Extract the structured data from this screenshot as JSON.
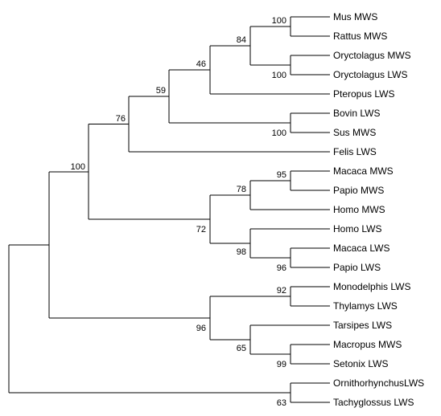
{
  "leaves": [
    "Mus MWS",
    "Rattus MWS",
    "Oryctolagus MWS",
    "Oryctolagus LWS",
    "Pteropus LWS",
    "Bovin LWS",
    "Sus MWS",
    "Felis LWS",
    "Macaca MWS",
    "Papio MWS",
    "Homo MWS",
    "Homo LWS",
    "Macaca LWS",
    "Papio LWS",
    "Monodelphis LWS",
    "Thylamys LWS",
    "Tarsipes LWS",
    "Macropus MWS",
    "Setonix LWS",
    "OrnithorhynchusLWS",
    "Tachyglossus LWS"
  ],
  "support_values": {
    "mus_rattus": "100",
    "oryctolagus_pair": "100",
    "glires": "84",
    "glires_pteropus": "46",
    "bovin_sus": "100",
    "laurasia_group": "59",
    "placental_nonprimate": "76",
    "macaca_papio_mws": "95",
    "primate_mws": "78",
    "macaca_papio_lws": "96",
    "primate_lws": "98",
    "primates": "72",
    "placentals": "100",
    "monodelphis_thylamys": "92",
    "macropus_setonix": "99",
    "diprotodont": "65",
    "marsupials": "96",
    "monotremes": "63"
  }
}
